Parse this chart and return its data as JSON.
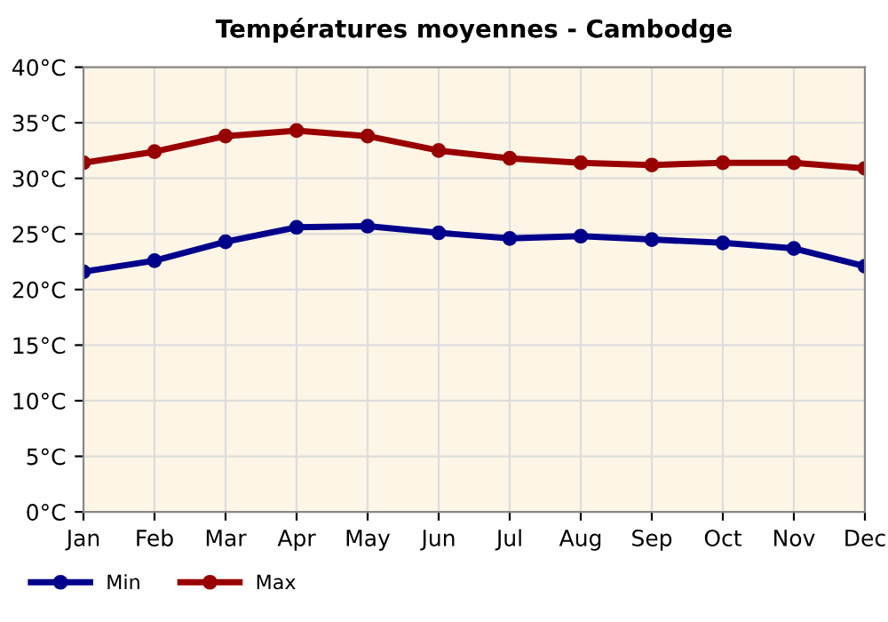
{
  "chart_data": {
    "type": "line",
    "title": "Températures moyennes - Cambodge",
    "categories": [
      "Jan",
      "Feb",
      "Mar",
      "Apr",
      "May",
      "Jun",
      "Jul",
      "Aug",
      "Sep",
      "Oct",
      "Nov",
      "Dec"
    ],
    "series": [
      {
        "name": "Min",
        "color": "#00008b",
        "values": [
          21.6,
          22.6,
          24.3,
          25.6,
          25.7,
          25.1,
          24.6,
          24.8,
          24.5,
          24.2,
          23.7,
          22.1
        ]
      },
      {
        "name": "Max",
        "color": "#990000",
        "values": [
          31.4,
          32.4,
          33.8,
          34.3,
          33.8,
          32.5,
          31.8,
          31.4,
          31.2,
          31.4,
          31.4,
          30.9
        ]
      }
    ],
    "ylim": [
      0,
      40
    ],
    "yticks": [
      {
        "value": 0,
        "label": "0°C"
      },
      {
        "value": 5,
        "label": "5°C"
      },
      {
        "value": 10,
        "label": "10°C"
      },
      {
        "value": 15,
        "label": "15°C"
      },
      {
        "value": 20,
        "label": "20°C"
      },
      {
        "value": 25,
        "label": "25°C"
      },
      {
        "value": 30,
        "label": "30°C"
      },
      {
        "value": 35,
        "label": "35°C"
      },
      {
        "value": 40,
        "label": "40°C"
      }
    ],
    "grid": true,
    "legend": "bottom left",
    "marker": "circle",
    "line_style": "solid"
  }
}
